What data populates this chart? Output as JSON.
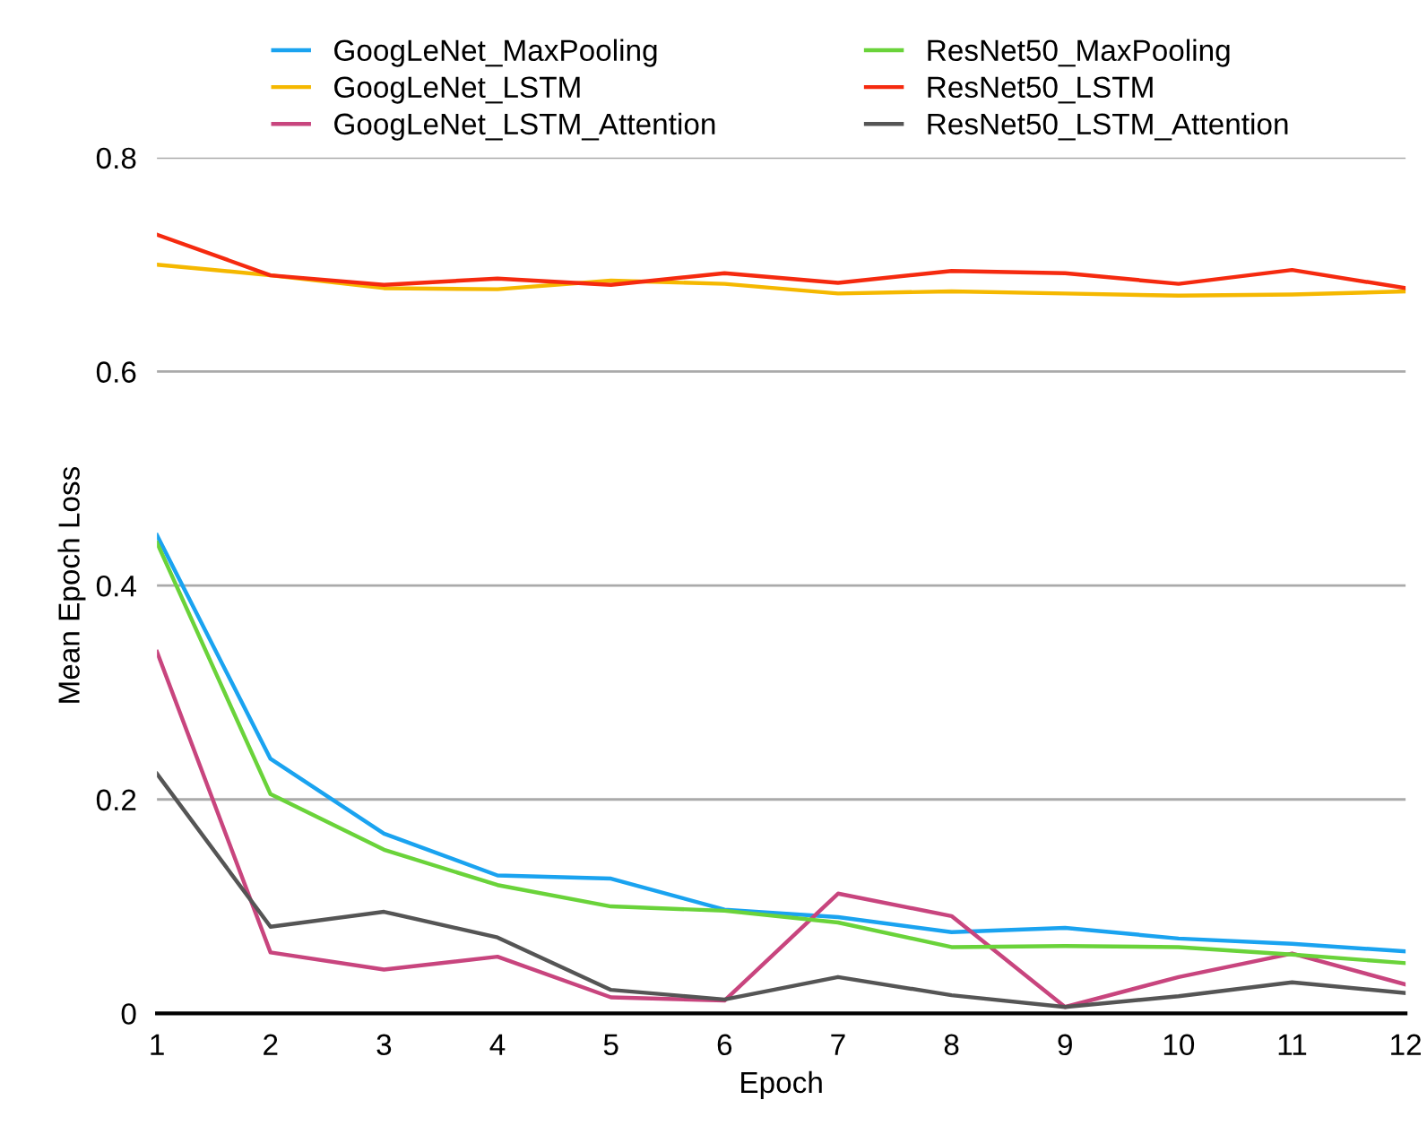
{
  "chart_data": {
    "type": "line",
    "xlabel": "Epoch",
    "ylabel": "Mean Epoch Loss",
    "x": [
      1,
      2,
      3,
      4,
      5,
      6,
      7,
      8,
      9,
      10,
      11,
      12
    ],
    "series": [
      {
        "name": "GoogLeNet_MaxPooling",
        "color": "#1aa3f0",
        "values": [
          0.447,
          0.238,
          0.168,
          0.129,
          0.126,
          0.097,
          0.09,
          0.076,
          0.08,
          0.07,
          0.065,
          0.058
        ]
      },
      {
        "name": "GoogLeNet_LSTM",
        "color": "#f5b800",
        "values": [
          0.7,
          0.69,
          0.678,
          0.677,
          0.685,
          0.682,
          0.673,
          0.675,
          0.673,
          0.671,
          0.672,
          0.675
        ]
      },
      {
        "name": "GoogLeNet_LSTM_Attention",
        "color": "#c8457e",
        "values": [
          0.338,
          0.057,
          0.041,
          0.053,
          0.015,
          0.012,
          0.112,
          0.091,
          0.006,
          0.034,
          0.056,
          0.027
        ]
      },
      {
        "name": "ResNet50_MaxPooling",
        "color": "#6ad33a",
        "values": [
          0.44,
          0.205,
          0.153,
          0.12,
          0.1,
          0.096,
          0.085,
          0.062,
          0.063,
          0.062,
          0.055,
          0.047
        ]
      },
      {
        "name": "ResNet50_LSTM",
        "color": "#f52a0f",
        "values": [
          0.728,
          0.69,
          0.681,
          0.687,
          0.681,
          0.692,
          0.683,
          0.694,
          0.692,
          0.682,
          0.695,
          0.678
        ]
      },
      {
        "name": "ResNet50_LSTM_Attention",
        "color": "#555555",
        "values": [
          0.224,
          0.081,
          0.095,
          0.071,
          0.022,
          0.013,
          0.034,
          0.017,
          0.006,
          0.016,
          0.029,
          0.019
        ]
      }
    ],
    "xlim": [
      1,
      12
    ],
    "xticks": [
      1,
      2,
      3,
      4,
      5,
      6,
      7,
      8,
      9,
      10,
      11,
      12
    ],
    "ylim": [
      0,
      0.8
    ],
    "yticks": [
      0,
      0.2,
      0.4,
      0.6,
      0.8
    ],
    "grid": "y",
    "legend": "top",
    "marker": "none",
    "line_style": "solid"
  }
}
